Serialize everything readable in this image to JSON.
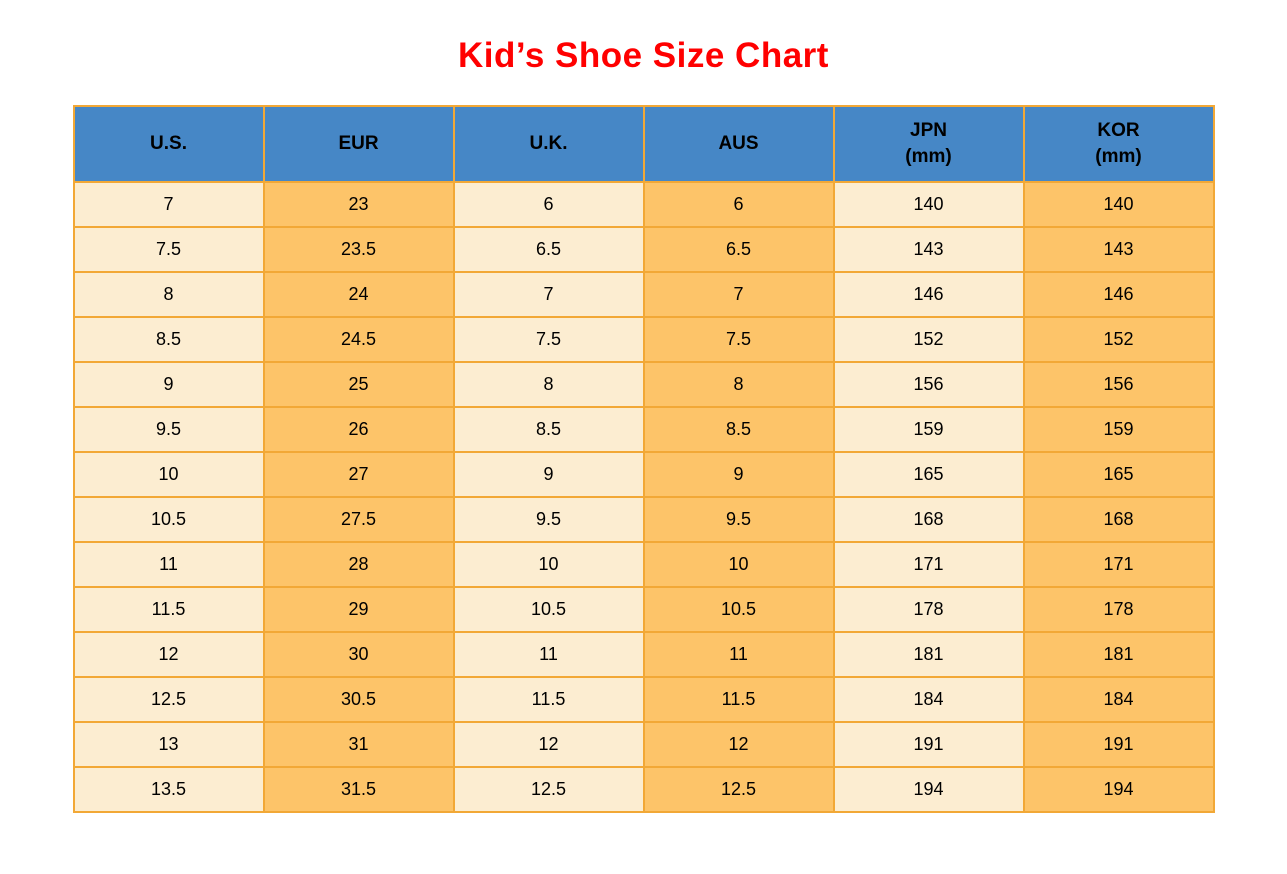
{
  "title": "Kid’s Shoe Size Chart",
  "colors": {
    "title_text": "#ff0000",
    "header_bg": "#4687c6",
    "grid_border": "#f2a836",
    "column_light": "#fcedd1",
    "column_dark": "#fdc469",
    "cell_text": "#000000"
  },
  "chart_data": {
    "type": "table",
    "title": "Kid’s Shoe Size Chart",
    "columns": [
      "U.S.",
      "EUR",
      "U.K.",
      "AUS",
      "JPN (mm)",
      "KOR (mm)"
    ],
    "header_lines": [
      [
        "U.S."
      ],
      [
        "EUR"
      ],
      [
        "U.K."
      ],
      [
        "AUS"
      ],
      [
        "JPN",
        "(mm)"
      ],
      [
        "KOR",
        "(mm)"
      ]
    ],
    "column_styles": [
      "light",
      "dark",
      "light",
      "dark",
      "light",
      "dark"
    ],
    "rows": [
      [
        "7",
        "23",
        "6",
        "6",
        "140",
        "140"
      ],
      [
        "7.5",
        "23.5",
        "6.5",
        "6.5",
        "143",
        "143"
      ],
      [
        "8",
        "24",
        "7",
        "7",
        "146",
        "146"
      ],
      [
        "8.5",
        "24.5",
        "7.5",
        "7.5",
        "152",
        "152"
      ],
      [
        "9",
        "25",
        "8",
        "8",
        "156",
        "156"
      ],
      [
        "9.5",
        "26",
        "8.5",
        "8.5",
        "159",
        "159"
      ],
      [
        "10",
        "27",
        "9",
        "9",
        "165",
        "165"
      ],
      [
        "10.5",
        "27.5",
        "9.5",
        "9.5",
        "168",
        "168"
      ],
      [
        "11",
        "28",
        "10",
        "10",
        "171",
        "171"
      ],
      [
        "11.5",
        "29",
        "10.5",
        "10.5",
        "178",
        "178"
      ],
      [
        "12",
        "30",
        "11",
        "11",
        "181",
        "181"
      ],
      [
        "12.5",
        "30.5",
        "11.5",
        "11.5",
        "184",
        "184"
      ],
      [
        "13",
        "31",
        "12",
        "12",
        "191",
        "191"
      ],
      [
        "13.5",
        "31.5",
        "12.5",
        "12.5",
        "194",
        "194"
      ]
    ]
  }
}
